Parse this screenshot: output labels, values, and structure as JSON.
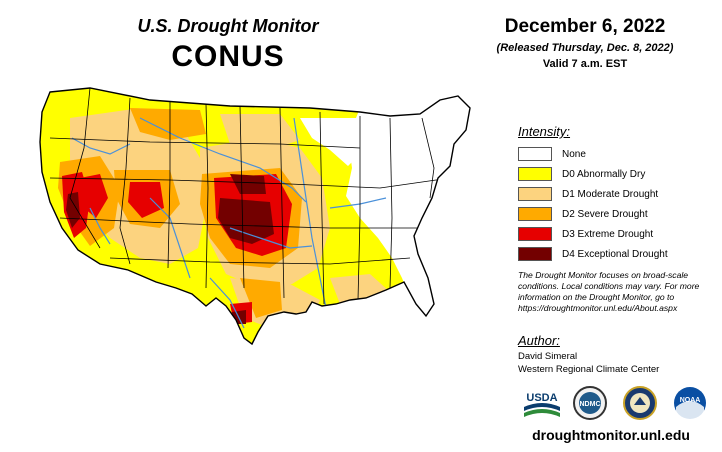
{
  "header": {
    "title": "U.S. Drought Monitor",
    "region": "CONUS",
    "date": "December 6, 2022",
    "released": "(Released Thursday, Dec. 8, 2022)",
    "valid": "Valid 7 a.m. EST"
  },
  "legend": {
    "title": "Intensity:",
    "items": [
      {
        "label": "None",
        "color": "#ffffff"
      },
      {
        "label": "D0 Abnormally Dry",
        "color": "#ffff00"
      },
      {
        "label": "D1 Moderate Drought",
        "color": "#fcd37f"
      },
      {
        "label": "D2 Severe Drought",
        "color": "#ffaa00"
      },
      {
        "label": "D3 Extreme Drought",
        "color": "#e60000"
      },
      {
        "label": "D4 Exceptional Drought",
        "color": "#730000"
      }
    ]
  },
  "note": "The Drought Monitor focuses on broad-scale conditions. Local conditions may vary. For more information on the Drought Monitor, go to https://droughtmonitor.unl.edu/About.aspx",
  "author": {
    "title": "Author:",
    "name": "David Simeral",
    "org": "Western Regional Climate Center"
  },
  "logos": [
    {
      "name": "usda",
      "text": "USDA"
    },
    {
      "name": "ndmc",
      "text": "NDMC"
    },
    {
      "name": "doc-seal",
      "text": ""
    },
    {
      "name": "noaa",
      "text": "NOAA"
    }
  ],
  "website": "droughtmonitor.unl.edu",
  "map_colors": {
    "river": "#4a90d9",
    "border": "#000000"
  }
}
